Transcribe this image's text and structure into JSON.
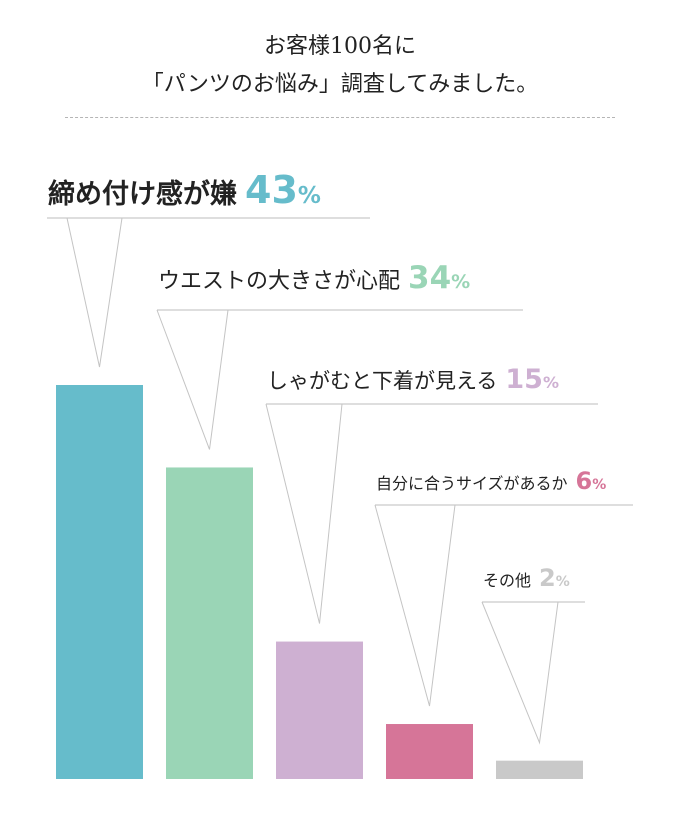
{
  "header": {
    "title_line1": "お客様100名に",
    "title_line2": "「パンツのお悩み」調査してみました。"
  },
  "chart_data": {
    "type": "bar",
    "title": "お客様100名に「パンツのお悩み」調査してみました。",
    "categories": [
      "締め付け感が嫌",
      "ウエストの大きさが心配",
      "しゃがむと下着が見える",
      "自分に合うサイズがあるか",
      "その他"
    ],
    "values": [
      43,
      34,
      15,
      6,
      2
    ],
    "value_labels": [
      "43",
      "34",
      "15",
      "6",
      "2"
    ],
    "unit": "%",
    "colors": [
      "#66bccb",
      "#9ad5b6",
      "#ceb0d2",
      "#d67598",
      "#c9c9c9"
    ],
    "ylim": [
      0,
      43
    ],
    "grid": false,
    "legend": "none"
  }
}
